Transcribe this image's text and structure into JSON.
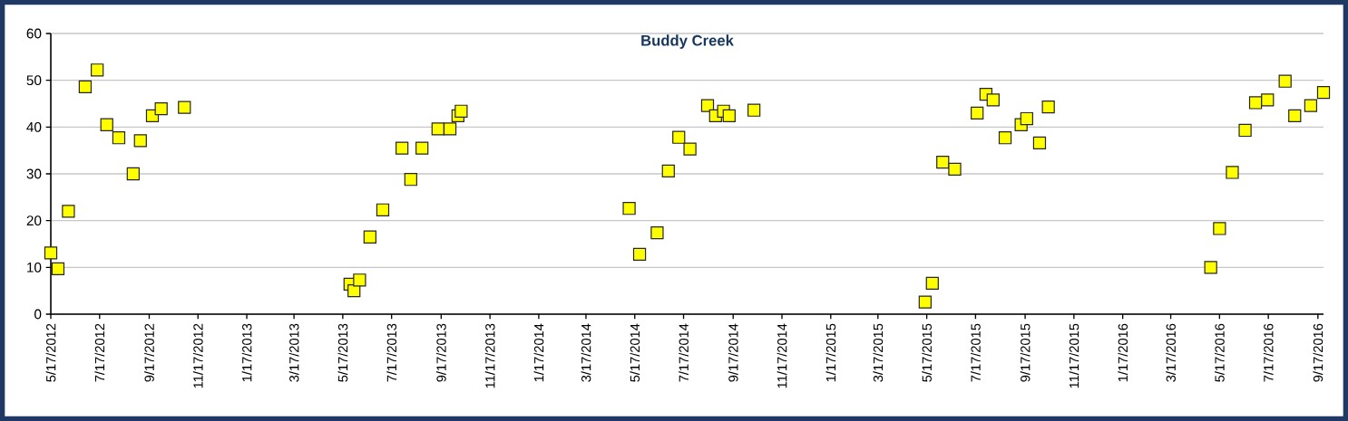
{
  "chart_data": {
    "type": "scatter",
    "title": "Buddy Creek",
    "x": [
      "2012-05-17",
      "2012-05-26",
      "2012-06-08",
      "2012-06-29",
      "2012-07-14",
      "2012-07-26",
      "2012-08-10",
      "2012-08-28",
      "2012-09-06",
      "2012-09-21",
      "2012-10-02",
      "2012-10-31",
      "2013-05-26",
      "2013-05-31",
      "2013-06-07",
      "2013-06-20",
      "2013-07-06",
      "2013-07-30",
      "2013-08-10",
      "2013-08-24",
      "2013-09-13",
      "2013-09-28",
      "2013-10-08",
      "2013-10-12",
      "2014-05-10",
      "2014-05-23",
      "2014-06-14",
      "2014-06-28",
      "2014-07-11",
      "2014-07-25",
      "2014-08-16",
      "2014-08-26",
      "2014-09-05",
      "2014-09-12",
      "2014-10-13",
      "2015-05-15",
      "2015-05-24",
      "2015-06-06",
      "2015-06-21",
      "2015-07-19",
      "2015-07-30",
      "2015-08-08",
      "2015-08-23",
      "2015-09-12",
      "2015-09-19",
      "2015-10-05",
      "2015-10-16",
      "2016-05-06",
      "2016-05-17",
      "2016-06-02",
      "2016-06-18",
      "2016-07-01",
      "2016-07-16",
      "2016-08-07",
      "2016-08-19",
      "2016-09-08",
      "2016-09-24"
    ],
    "series": [
      {
        "color": "#ffff00",
        "values": [
          13.1,
          9.7,
          22.0,
          48.6,
          52.2,
          40.5,
          37.7,
          30.0,
          37.1,
          42.4,
          43.9,
          44.2,
          6.4,
          5.0,
          7.3,
          16.5,
          22.3,
          35.5,
          28.8,
          35.5,
          39.6,
          39.6,
          42.4,
          43.4,
          22.6,
          12.8,
          17.4,
          30.6,
          37.8,
          35.3,
          44.6,
          42.4,
          43.4,
          42.4,
          43.6,
          2.6,
          6.6,
          32.5,
          31.0,
          43.0,
          47.0,
          45.8,
          37.7,
          40.5,
          41.8,
          36.6,
          44.3,
          10.0,
          18.3,
          30.3,
          39.3,
          45.2,
          45.8,
          49.8,
          42.4,
          44.6,
          47.4
        ]
      }
    ],
    "xlim": [
      "2012-05-17",
      "2016-09-24"
    ],
    "xticks": [
      {
        "value": "2012-05-17",
        "label": "5/17/2012"
      },
      {
        "value": "2012-07-17",
        "label": "7/17/2012"
      },
      {
        "value": "2012-09-17",
        "label": "9/17/2012"
      },
      {
        "value": "2012-11-17",
        "label": "11/17/2012"
      },
      {
        "value": "2013-01-17",
        "label": "1/17/2013"
      },
      {
        "value": "2013-03-17",
        "label": "3/17/2013"
      },
      {
        "value": "2013-05-17",
        "label": "5/17/2013"
      },
      {
        "value": "2013-07-17",
        "label": "7/17/2013"
      },
      {
        "value": "2013-09-17",
        "label": "9/17/2013"
      },
      {
        "value": "2013-11-17",
        "label": "11/17/2013"
      },
      {
        "value": "2014-01-17",
        "label": "1/17/2014"
      },
      {
        "value": "2014-03-17",
        "label": "3/17/2014"
      },
      {
        "value": "2014-05-17",
        "label": "5/17/2014"
      },
      {
        "value": "2014-07-17",
        "label": "7/17/2014"
      },
      {
        "value": "2014-09-17",
        "label": "9/17/2014"
      },
      {
        "value": "2014-11-17",
        "label": "11/17/2014"
      },
      {
        "value": "2015-01-17",
        "label": "1/17/2015"
      },
      {
        "value": "2015-03-17",
        "label": "3/17/2015"
      },
      {
        "value": "2015-05-17",
        "label": "5/17/2015"
      },
      {
        "value": "2015-07-17",
        "label": "7/17/2015"
      },
      {
        "value": "2015-09-17",
        "label": "9/17/2015"
      },
      {
        "value": "2015-11-17",
        "label": "11/17/2015"
      },
      {
        "value": "2016-01-17",
        "label": "1/17/2016"
      },
      {
        "value": "2016-03-17",
        "label": "3/17/2016"
      },
      {
        "value": "2016-05-17",
        "label": "5/17/2016"
      },
      {
        "value": "2016-07-17",
        "label": "7/17/2016"
      },
      {
        "value": "2016-09-17",
        "label": "9/17/2016"
      }
    ],
    "ylim": [
      0,
      60
    ],
    "yticks": [
      0,
      10,
      20,
      30,
      40,
      50,
      60
    ],
    "grid": "y",
    "marker": "square"
  }
}
